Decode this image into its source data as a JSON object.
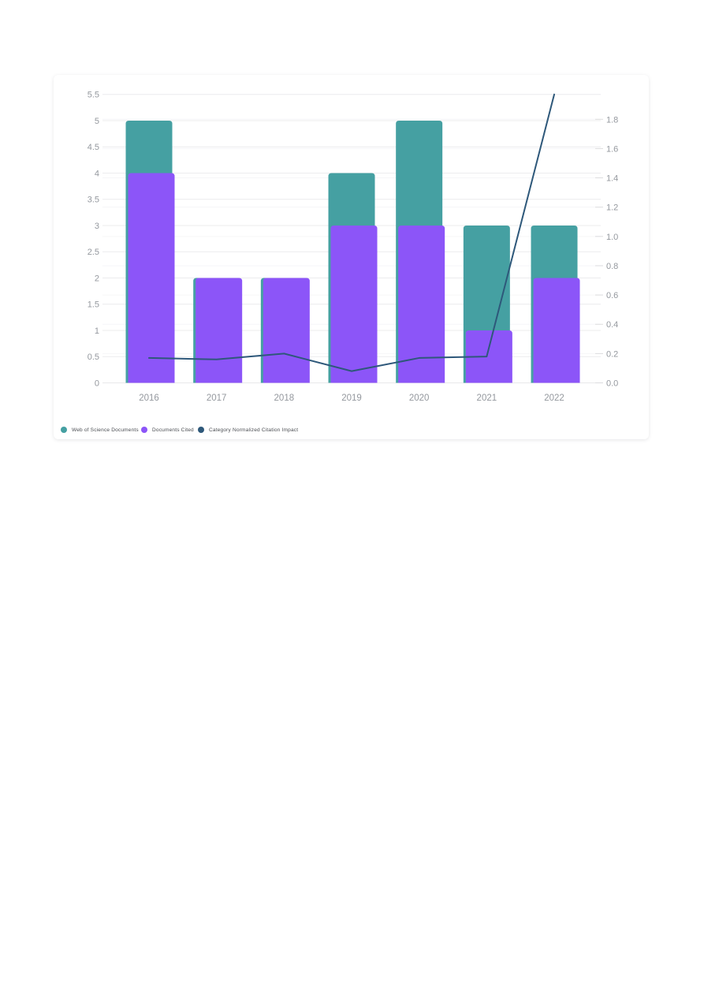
{
  "page": {
    "background": "#ffffff"
  },
  "chart_data": {
    "type": "bar",
    "subtype": "combo-bar-line-dual-axis",
    "title": "",
    "xlabel": "",
    "ylabel": "",
    "categories": [
      "2016",
      "2017",
      "2018",
      "2019",
      "2020",
      "2021",
      "2022"
    ],
    "series": [
      {
        "name": "Web of Science Documents",
        "type": "bar",
        "axis": "left",
        "color": "#45A0A2",
        "values": [
          5,
          2,
          2,
          4,
          5,
          3,
          3
        ]
      },
      {
        "name": "Documents Cited",
        "type": "bar",
        "axis": "left",
        "color": "#8C55F8",
        "values": [
          4,
          2,
          2,
          3,
          3,
          1,
          2
        ]
      },
      {
        "name": "Category Normalized Citation Impact",
        "type": "line",
        "axis": "right",
        "color": "#2E587A",
        "values": [
          0.17,
          0.16,
          0.2,
          0.08,
          0.17,
          0.18,
          1.97
        ]
      }
    ],
    "left_axis": {
      "min": 0,
      "max": 5.5,
      "tick_labels": [
        "0",
        "0.5",
        "1",
        "1.5",
        "2",
        "2.5",
        "3",
        "3.5",
        "4",
        "4.5",
        "5",
        "5.5"
      ]
    },
    "right_axis": {
      "min": 0,
      "max": 1.97,
      "tick_labels": [
        "0.0",
        "0.2",
        "0.4",
        "0.6",
        "0.8",
        "1.0",
        "1.2",
        "1.4",
        "1.6",
        "1.8"
      ]
    },
    "grid": true,
    "legend_position": "bottom"
  },
  "colors": {
    "grid_left": "#ececee",
    "grid_right": "#f6f6f8",
    "axis_line": "#e8e8ea",
    "tick_mark": "#dcdcde",
    "tick_label": "#94989e",
    "legend_text": "#4a4d52"
  }
}
